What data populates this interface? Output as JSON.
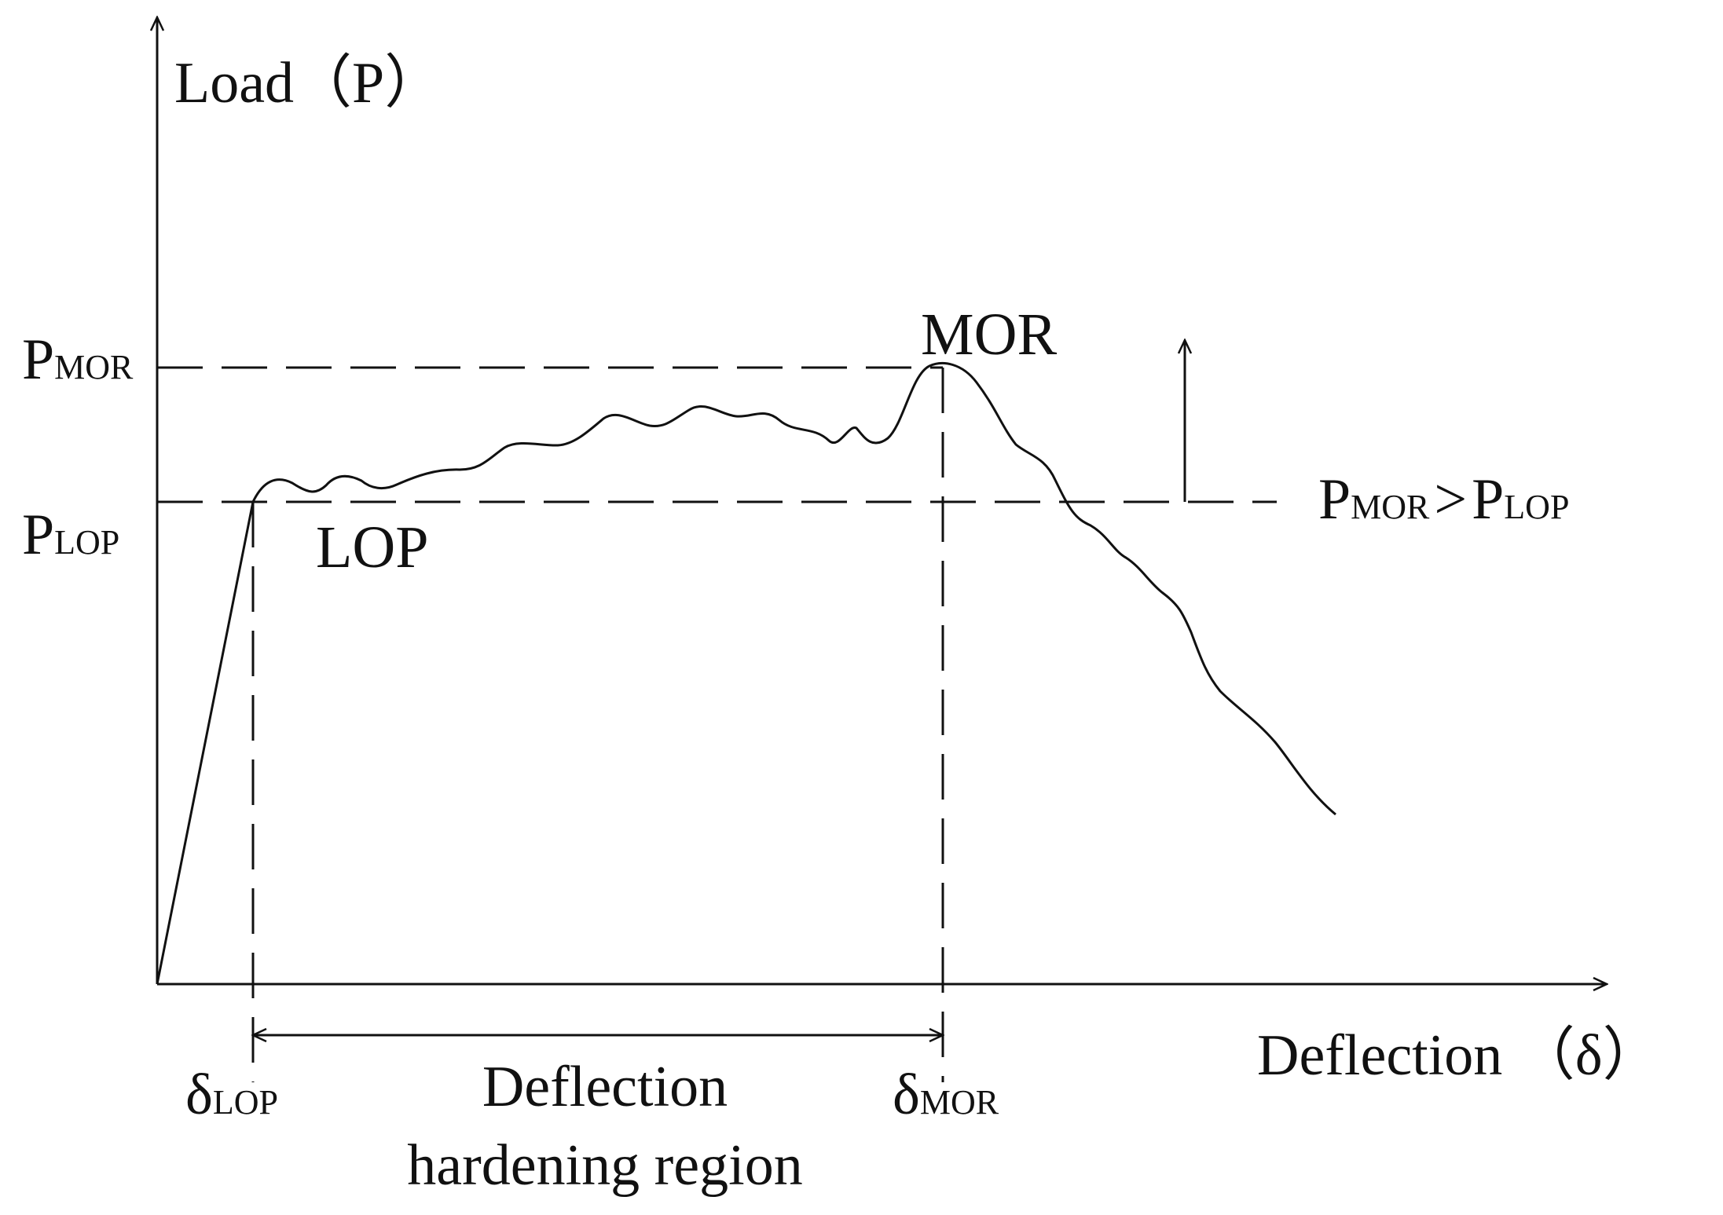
{
  "axes": {
    "y_label": "Load（P）",
    "x_label": "Deflection （δ）"
  },
  "points": {
    "lop": {
      "label": "LOP",
      "load_symbol": "P",
      "load_subscript": "LOP",
      "deflection_symbol": "δ",
      "deflection_subscript": "LOP"
    },
    "mor": {
      "label": "MOR",
      "load_symbol": "P",
      "load_subscript": "MOR",
      "deflection_symbol": "δ",
      "deflection_subscript": "MOR"
    }
  },
  "comparison": {
    "left_symbol": "P",
    "left_subscript": "MOR",
    "operator": ">",
    "right_symbol": "P",
    "right_subscript": "LOP"
  },
  "region": {
    "line1": "Deflection",
    "line2": "hardening region"
  },
  "colors": {
    "ink": "#111111",
    "background": "#ffffff"
  }
}
